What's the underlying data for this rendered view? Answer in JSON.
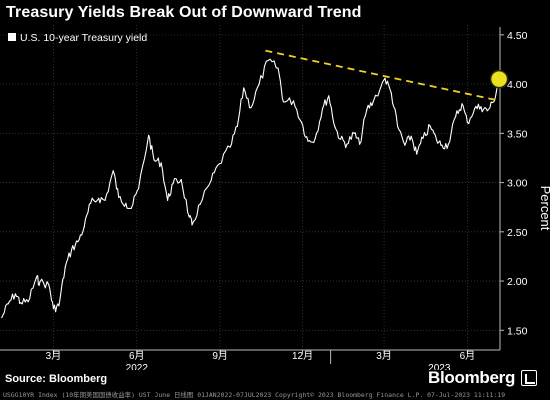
{
  "header": {
    "title": "Treasury Yields Break Out of Downward Trend"
  },
  "footer": {
    "source": "Source: Bloomberg",
    "logo": "Bloomberg",
    "disclaimer": "USGG10YR Index (10年期美国国债收益率) UST June  日线图 01JAN2022-07JUL2023 Copyright© 2023 Bloomberg Finance L.P. 07-Jul-2023 11:11:19"
  },
  "chart_data": {
    "type": "line",
    "ylabel": "Percent",
    "ylim": [
      1.3,
      4.6
    ],
    "yticks": [
      1.5,
      2.0,
      2.5,
      3.0,
      3.5,
      4.0,
      4.5
    ],
    "ytick_labels": [
      "1.50",
      "2.00",
      "2.50",
      "3.00",
      "3.50",
      "4.00",
      "4.50"
    ],
    "xlim": [
      "2022-01-01",
      "2023-07-07"
    ],
    "xticks": [
      {
        "date": "2022-03-01",
        "label": "3月"
      },
      {
        "date": "2022-06-01",
        "label": "6月"
      },
      {
        "date": "2022-09-01",
        "label": "9月"
      },
      {
        "date": "2022-12-01",
        "label": "12月"
      },
      {
        "date": "2023-03-01",
        "label": "3月"
      },
      {
        "date": "2023-06-01",
        "label": "6月"
      }
    ],
    "year_labels": [
      {
        "label": "2022",
        "date": "2022-06-01"
      },
      {
        "label": "2023",
        "date": "2023-05-01"
      }
    ],
    "legend": {
      "position": "top-left"
    },
    "series": [
      {
        "name": "U.S. 10-year Treasury yield",
        "color": "#ffffff",
        "points": [
          [
            "2022-01-03",
            1.63
          ],
          [
            "2022-01-10",
            1.77
          ],
          [
            "2022-01-18",
            1.87
          ],
          [
            "2022-01-24",
            1.78
          ],
          [
            "2022-02-01",
            1.79
          ],
          [
            "2022-02-10",
            2.03
          ],
          [
            "2022-02-14",
            1.99
          ],
          [
            "2022-02-24",
            1.96
          ],
          [
            "2022-03-01",
            1.72
          ],
          [
            "2022-03-07",
            1.75
          ],
          [
            "2022-03-14",
            2.14
          ],
          [
            "2022-03-21",
            2.32
          ],
          [
            "2022-03-28",
            2.4
          ],
          [
            "2022-04-04",
            2.55
          ],
          [
            "2022-04-11",
            2.79
          ],
          [
            "2022-04-20",
            2.84
          ],
          [
            "2022-04-27",
            2.82
          ],
          [
            "2022-05-06",
            3.12
          ],
          [
            "2022-05-12",
            2.85
          ],
          [
            "2022-05-20",
            2.79
          ],
          [
            "2022-05-26",
            2.74
          ],
          [
            "2022-06-03",
            2.94
          ],
          [
            "2022-06-14",
            3.48
          ],
          [
            "2022-06-20",
            3.23
          ],
          [
            "2022-06-28",
            3.2
          ],
          [
            "2022-07-05",
            2.82
          ],
          [
            "2022-07-11",
            2.99
          ],
          [
            "2022-07-20",
            3.03
          ],
          [
            "2022-07-29",
            2.65
          ],
          [
            "2022-08-01",
            2.57
          ],
          [
            "2022-08-10",
            2.78
          ],
          [
            "2022-08-22",
            3.02
          ],
          [
            "2022-08-31",
            3.19
          ],
          [
            "2022-09-12",
            3.36
          ],
          [
            "2022-09-20",
            3.57
          ],
          [
            "2022-09-27",
            3.96
          ],
          [
            "2022-10-05",
            3.76
          ],
          [
            "2022-10-14",
            4.0
          ],
          [
            "2022-10-24",
            4.24
          ],
          [
            "2022-11-04",
            4.16
          ],
          [
            "2022-11-10",
            3.82
          ],
          [
            "2022-11-21",
            3.83
          ],
          [
            "2022-11-30",
            3.61
          ],
          [
            "2022-12-07",
            3.42
          ],
          [
            "2022-12-15",
            3.45
          ],
          [
            "2022-12-23",
            3.75
          ],
          [
            "2022-12-30",
            3.88
          ],
          [
            "2023-01-06",
            3.56
          ],
          [
            "2023-01-12",
            3.44
          ],
          [
            "2023-01-19",
            3.39
          ],
          [
            "2023-01-27",
            3.5
          ],
          [
            "2023-02-02",
            3.39
          ],
          [
            "2023-02-10",
            3.74
          ],
          [
            "2023-02-17",
            3.82
          ],
          [
            "2023-03-02",
            4.06
          ],
          [
            "2023-03-09",
            3.91
          ],
          [
            "2023-03-16",
            3.57
          ],
          [
            "2023-03-24",
            3.38
          ],
          [
            "2023-03-31",
            3.47
          ],
          [
            "2023-04-06",
            3.29
          ],
          [
            "2023-04-13",
            3.45
          ],
          [
            "2023-04-21",
            3.57
          ],
          [
            "2023-04-28",
            3.43
          ],
          [
            "2023-05-04",
            3.38
          ],
          [
            "2023-05-11",
            3.39
          ],
          [
            "2023-05-19",
            3.67
          ],
          [
            "2023-05-26",
            3.8
          ],
          [
            "2023-06-01",
            3.61
          ],
          [
            "2023-06-09",
            3.75
          ],
          [
            "2023-06-16",
            3.77
          ],
          [
            "2023-06-23",
            3.73
          ],
          [
            "2023-06-30",
            3.82
          ],
          [
            "2023-07-06",
            4.05
          ]
        ]
      }
    ],
    "trendline": {
      "color": "#f2d02b",
      "style": "dashed",
      "from": [
        "2022-10-21",
        4.34
      ],
      "to": [
        "2023-07-07",
        3.83
      ]
    },
    "highlight": {
      "date": "2023-07-06",
      "value": 4.05,
      "color": "#e8e020"
    }
  }
}
